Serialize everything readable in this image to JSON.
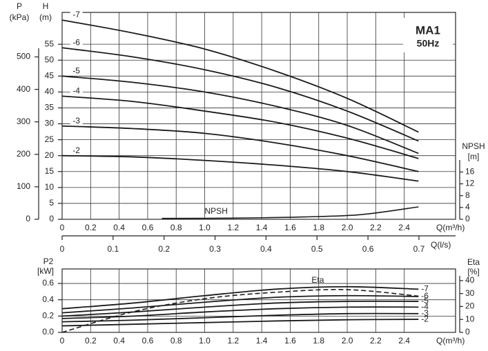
{
  "chart_data": [
    {
      "type": "line",
      "title": "MA1",
      "subtitle": "50Hz",
      "x_label": "Q(m³/h)",
      "x2_label": "Q(l/s)",
      "y_label": "H",
      "y_unit": "(m)",
      "p_label": "P",
      "p_unit": "(kPa)",
      "y2_label": "NPSH",
      "y2_unit": "[m]",
      "xlim": [
        0,
        2.76
      ],
      "xticks": [
        0,
        0.2,
        0.4,
        0.6,
        0.8,
        {
          "value": 1,
          "label": "1.0"
        },
        1.2,
        1.4,
        1.6,
        1.8,
        {
          "value": 2,
          "label": "2.0"
        },
        2.2,
        2.4
      ],
      "x2lim": [
        0,
        0.7718
      ],
      "x2ticks": [
        0,
        0.1,
        0.2,
        0.3,
        0.4,
        0.5,
        0.6,
        0.7
      ],
      "ylim": [
        0,
        65
      ],
      "yticks": [
        0,
        5,
        10,
        15,
        20,
        25,
        30,
        35,
        40,
        45,
        50,
        55
      ],
      "plim": [
        0,
        637
      ],
      "pticks": [
        0,
        100,
        200,
        300,
        400,
        500
      ],
      "y2lim": [
        0,
        70
      ],
      "y2ticks": [
        0,
        4,
        8,
        12,
        16
      ],
      "grid": true,
      "x": [
        0,
        0.5,
        1,
        1.5,
        2,
        2.5
      ],
      "series": [
        {
          "name": "-7",
          "color": "#1a1a1a",
          "values": [
            62.6,
            58.5,
            53.5,
            46.5,
            38,
            27.4
          ]
        },
        {
          "name": "-6",
          "color": "#1a1a1a",
          "values": [
            53.9,
            51,
            47,
            41.5,
            34,
            24.6
          ]
        },
        {
          "name": "-5",
          "color": "#1a1a1a",
          "values": [
            45,
            43,
            40,
            35.5,
            29.5,
            20.7
          ]
        },
        {
          "name": "-4",
          "color": "#1a1a1a",
          "values": [
            38.7,
            37,
            34,
            30.5,
            25.5,
            19.1
          ]
        },
        {
          "name": "-3",
          "color": "#1a1a1a",
          "values": [
            29.3,
            28.5,
            27,
            24,
            20,
            15
          ]
        },
        {
          "name": "-2",
          "color": "#1a1a1a",
          "values": [
            20,
            19.6,
            18.5,
            17,
            15,
            12
          ]
        },
        {
          "name": "NPSH",
          "color": "#1a1a1a",
          "axis": "y2",
          "x": [
            0.7,
            1.2,
            1.7,
            2.1,
            2.5
          ],
          "values": [
            0.3,
            0.4,
            0.8,
            1.6,
            4.2
          ]
        }
      ]
    },
    {
      "type": "line",
      "x_label": "Q(m³/h)",
      "y_label": "P2",
      "y_unit": "[kW]",
      "y2_label": "Eta",
      "y2_unit": "[%]",
      "xlim": [
        0,
        2.76
      ],
      "xticks": [
        0,
        0.2,
        0.4,
        0.6,
        0.8,
        {
          "value": 1,
          "label": "1.0"
        },
        1.2,
        1.4,
        1.6,
        1.8,
        {
          "value": 2,
          "label": "2.0"
        },
        2.2,
        2.4
      ],
      "ylim": [
        0,
        0.778
      ],
      "yticks": [
        {
          "value": 0,
          "label": "0.0"
        },
        0.2,
        0.4,
        0.6
      ],
      "y2lim": [
        0,
        49
      ],
      "y2ticks": [
        0,
        10,
        20,
        30,
        40
      ],
      "grid": true,
      "x": [
        0,
        0.5,
        1,
        1.5,
        2,
        2.5
      ],
      "series": [
        {
          "name": "-7",
          "color": "#1a1a1a",
          "values": [
            0.29,
            0.36,
            0.45,
            0.53,
            0.56,
            0.53
          ]
        },
        {
          "name": "-6",
          "color": "#1a1a1a",
          "values": [
            0.24,
            0.3,
            0.37,
            0.43,
            0.45,
            0.44
          ]
        },
        {
          "name": "-5",
          "color": "#1a1a1a",
          "values": [
            0.2,
            0.25,
            0.31,
            0.36,
            0.38,
            0.38
          ]
        },
        {
          "name": "-4",
          "color": "#1a1a1a",
          "values": [
            0.17,
            0.2,
            0.25,
            0.29,
            0.31,
            0.31
          ]
        },
        {
          "name": "-3",
          "color": "#1a1a1a",
          "values": [
            0.13,
            0.15,
            0.18,
            0.21,
            0.23,
            0.23
          ]
        },
        {
          "name": "-2",
          "color": "#1a1a1a",
          "values": [
            0.08,
            0.1,
            0.12,
            0.14,
            0.155,
            0.16
          ]
        },
        {
          "name": "Eta",
          "color": "#1a1a1a",
          "axis": "y2",
          "style": "dashed",
          "values": [
            0,
            16,
            26,
            31,
            33,
            28
          ]
        }
      ]
    }
  ]
}
